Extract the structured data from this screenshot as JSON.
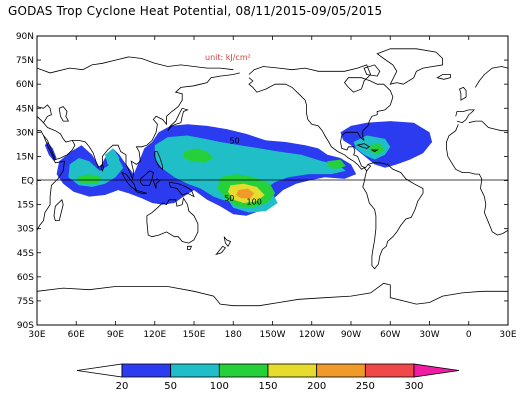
{
  "title": "GODAS Trop Cyclone Heat Potential, 08/11/2015-09/05/2015",
  "unit_label": "unit: kJ/cm²",
  "lat_labels": [
    "90N",
    "75N",
    "60N",
    "45N",
    "30N",
    "15N",
    "EQ",
    "15S",
    "30S",
    "45S",
    "60S",
    "75S",
    "90S"
  ],
  "lon_labels": [
    "30E",
    "60E",
    "90E",
    "120E",
    "150E",
    "180",
    "150W",
    "120W",
    "90W",
    "60W",
    "30W",
    "0",
    "30E"
  ],
  "contour_labels": [
    {
      "text": "50",
      "lon": 181,
      "lat": 25
    },
    {
      "text": "50",
      "lon": 177,
      "lat": -11
    },
    {
      "text": "100",
      "lon": 196,
      "lat": -13
    }
  ],
  "colorbar": {
    "levels": [
      "20",
      "50",
      "100",
      "150",
      "200",
      "250",
      "300"
    ],
    "colors": [
      "#ffffff",
      "#2b3bf0",
      "#20bfc8",
      "#26d03a",
      "#e6dc2e",
      "#f09a2a",
      "#f04848",
      "#f01ca4"
    ]
  },
  "colors": {
    "under_20": "#ffffff",
    "c20_50": "#2b3bf0",
    "c50_100": "#20bfc8",
    "c100_150": "#26d03a",
    "c150_200": "#e6dc2e",
    "c200_250": "#f09a2a",
    "c250_300": "#f04848",
    "over_300": "#f01ca4",
    "coast": "#000000"
  }
}
